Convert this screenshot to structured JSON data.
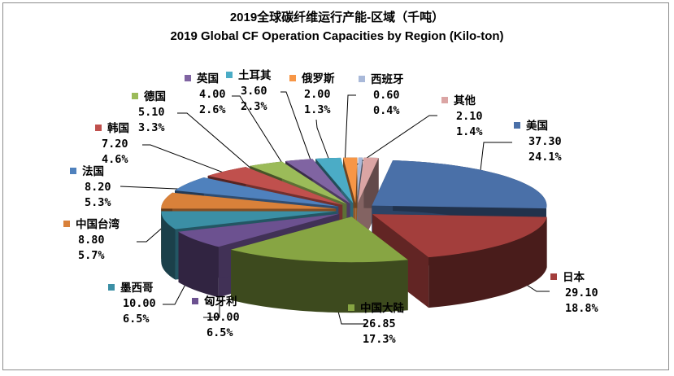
{
  "chart_data": {
    "type": "pie",
    "style": "3d-exploded",
    "title": "2019全球碳纤维运行产能-区域（千吨）",
    "subtitle": "2019 Global CF Operation Capacities by Region (Kilo-ton)",
    "slices": [
      {
        "name": "美国",
        "value": 37.3,
        "percent": "24.1%",
        "value_label": "37.30",
        "color": "#4a70a8"
      },
      {
        "name": "日本",
        "value": 29.1,
        "percent": "18.8%",
        "value_label": "29.10",
        "color": "#a33e3c"
      },
      {
        "name": "中国大陆",
        "value": 26.85,
        "percent": "17.3%",
        "value_label": "26.85",
        "color": "#87a543"
      },
      {
        "name": "匈牙利",
        "value": 10.0,
        "percent": "6.5%",
        "value_label": "10.00",
        "color": "#6c5190"
      },
      {
        "name": "墨西哥",
        "value": 10.0,
        "percent": "6.5%",
        "value_label": "10.00",
        "color": "#3b8fa5"
      },
      {
        "name": "中国台湾",
        "value": 8.8,
        "percent": "5.7%",
        "value_label": "8.80",
        "color": "#d9813a"
      },
      {
        "name": "法国",
        "value": 8.2,
        "percent": "5.3%",
        "value_label": "8.20",
        "color": "#4f81bd"
      },
      {
        "name": "韩国",
        "value": 7.2,
        "percent": "4.6%",
        "value_label": "7.20",
        "color": "#c0504d"
      },
      {
        "name": "德国",
        "value": 5.1,
        "percent": "3.3%",
        "value_label": "5.10",
        "color": "#9bbb59"
      },
      {
        "name": "英国",
        "value": 4.0,
        "percent": "2.6%",
        "value_label": "4.00",
        "color": "#8064a2"
      },
      {
        "name": "土耳其",
        "value": 3.6,
        "percent": "2.3%",
        "value_label": "3.60",
        "color": "#4bacc6"
      },
      {
        "name": "俄罗斯",
        "value": 2.0,
        "percent": "1.3%",
        "value_label": "2.00",
        "color": "#f79646"
      },
      {
        "name": "西班牙",
        "value": 0.6,
        "percent": "0.4%",
        "value_label": "0.60",
        "color": "#a9b9d9"
      },
      {
        "name": "其他",
        "value": 2.1,
        "percent": "1.4%",
        "value_label": "2.10",
        "color": "#dba5a4"
      }
    ]
  }
}
